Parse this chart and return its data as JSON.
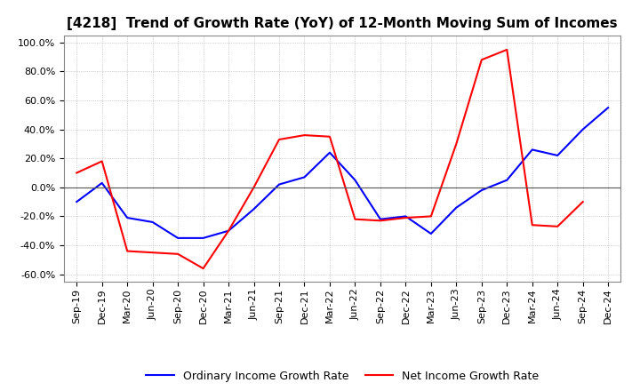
{
  "title": "[4218]  Trend of Growth Rate (YoY) of 12-Month Moving Sum of Incomes",
  "x_labels": [
    "Sep-19",
    "Dec-19",
    "Mar-20",
    "Jun-20",
    "Sep-20",
    "Dec-20",
    "Mar-21",
    "Jun-21",
    "Sep-21",
    "Dec-21",
    "Mar-22",
    "Jun-22",
    "Sep-22",
    "Dec-22",
    "Mar-23",
    "Jun-23",
    "Sep-23",
    "Dec-23",
    "Mar-24",
    "Jun-24",
    "Sep-24",
    "Dec-24"
  ],
  "ordinary_income": [
    -0.1,
    0.03,
    -0.21,
    -0.24,
    -0.35,
    -0.35,
    -0.3,
    -0.15,
    0.02,
    0.07,
    0.24,
    0.05,
    -0.22,
    -0.2,
    -0.32,
    -0.14,
    -0.02,
    0.05,
    0.26,
    0.22,
    0.4,
    0.55
  ],
  "net_income": [
    0.1,
    0.18,
    -0.44,
    -0.45,
    -0.46,
    -0.56,
    -0.3,
    0.0,
    0.33,
    0.36,
    0.35,
    -0.22,
    -0.23,
    -0.21,
    -0.2,
    0.3,
    0.88,
    0.95,
    -0.26,
    -0.27,
    -0.1,
    null
  ],
  "ylim": [
    -0.65,
    1.05
  ],
  "yticks": [
    -0.6,
    -0.4,
    -0.2,
    0.0,
    0.2,
    0.4,
    0.6,
    0.8,
    1.0
  ],
  "ordinary_color": "#0000FF",
  "net_color": "#FF0000",
  "bg_color": "#FFFFFF",
  "grid_color": "#AAAAAA",
  "legend_ordinary": "Ordinary Income Growth Rate",
  "legend_net": "Net Income Growth Rate",
  "title_fontsize": 11,
  "axis_fontsize": 8,
  "legend_fontsize": 9
}
